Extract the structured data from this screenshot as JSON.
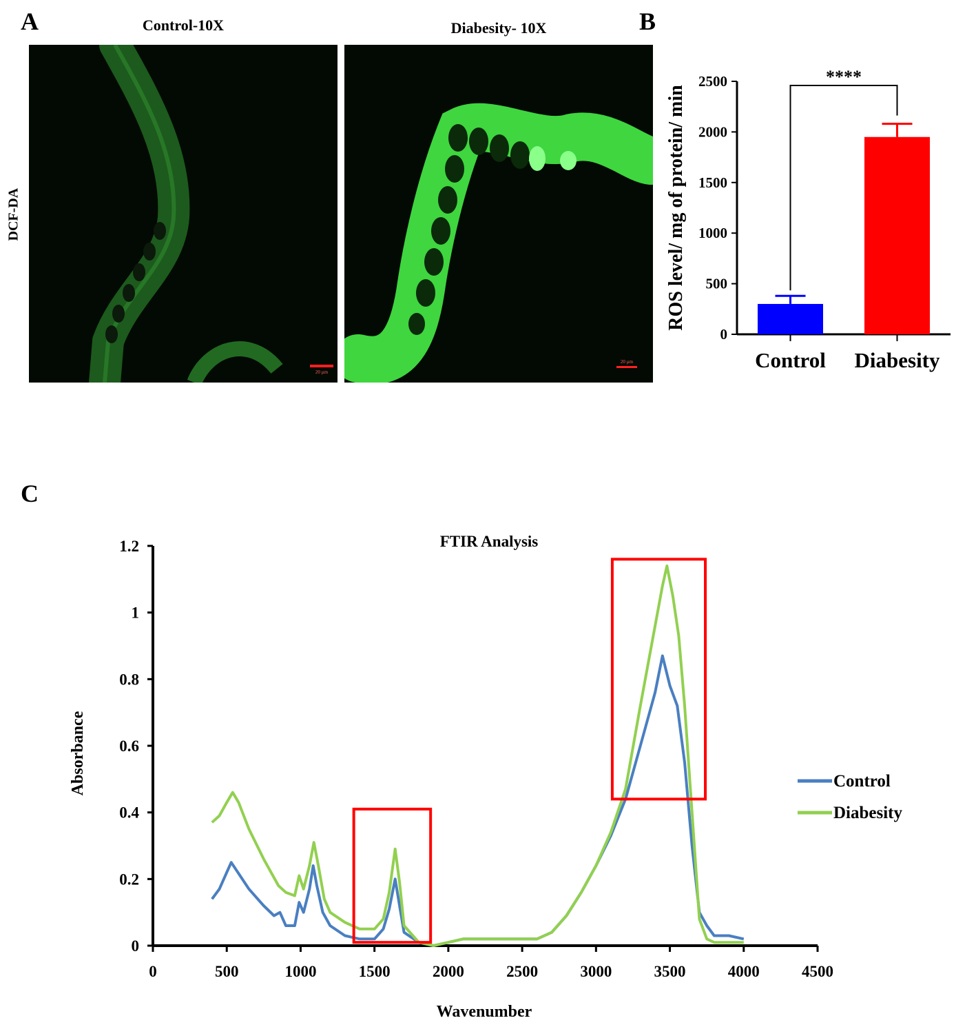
{
  "panel_a": {
    "letter": "A",
    "stain_label": "DCF-DA",
    "images": [
      {
        "title": "Control-10X",
        "scale_bar": "20 µm"
      },
      {
        "title": "Diabesity- 10X",
        "scale_bar": "20 µm"
      }
    ]
  },
  "panel_b": {
    "letter": "B"
  },
  "panel_c": {
    "letter": "C"
  },
  "chart_data": [
    {
      "type": "bar",
      "title": "",
      "xlabel": "",
      "ylabel": "ROS level/ mg of protein/ min",
      "categories": [
        "Control",
        "Diabesity"
      ],
      "values": [
        300,
        1950
      ],
      "errors": [
        80,
        130
      ],
      "colors": [
        "#0000ff",
        "#ff0000"
      ],
      "ylim": [
        0,
        2500
      ],
      "yticks": [
        0,
        500,
        1000,
        1500,
        2000,
        2500
      ],
      "significance": "****",
      "grid": false
    },
    {
      "type": "line",
      "title": "FTIR Analysis",
      "xlabel": "Wavenumber",
      "ylabel": "Absorbance",
      "xlim": [
        0,
        4500
      ],
      "ylim": [
        0,
        1.2
      ],
      "xticks": [
        0,
        500,
        1000,
        1500,
        2000,
        2500,
        3000,
        3500,
        4000,
        4500
      ],
      "yticks": [
        "0",
        "0.2",
        "0.4",
        "0.6",
        "0.8",
        "1",
        "1.2"
      ],
      "legend_position": "right",
      "grid": false,
      "series": [
        {
          "name": "Control",
          "color": "#4a7fc1",
          "x": [
            400,
            450,
            500,
            530,
            560,
            650,
            750,
            820,
            860,
            900,
            960,
            990,
            1020,
            1060,
            1085,
            1110,
            1150,
            1200,
            1300,
            1400,
            1500,
            1560,
            1600,
            1640,
            1670,
            1700,
            1800,
            1900,
            2000,
            2100,
            2300,
            2500,
            2600,
            2700,
            2800,
            2900,
            3000,
            3100,
            3200,
            3300,
            3400,
            3450,
            3500,
            3550,
            3600,
            3650,
            3700,
            3750,
            3800,
            3900,
            4000
          ],
          "y": [
            0.14,
            0.17,
            0.22,
            0.25,
            0.23,
            0.17,
            0.12,
            0.09,
            0.1,
            0.06,
            0.06,
            0.13,
            0.1,
            0.17,
            0.24,
            0.18,
            0.1,
            0.06,
            0.03,
            0.02,
            0.02,
            0.05,
            0.11,
            0.2,
            0.12,
            0.04,
            0.01,
            0.0,
            0.01,
            0.02,
            0.02,
            0.02,
            0.02,
            0.04,
            0.09,
            0.16,
            0.24,
            0.33,
            0.44,
            0.6,
            0.76,
            0.87,
            0.78,
            0.72,
            0.55,
            0.3,
            0.1,
            0.06,
            0.03,
            0.03,
            0.02
          ]
        },
        {
          "name": "Diabesity",
          "color": "#92d050",
          "x": [
            400,
            450,
            500,
            540,
            580,
            650,
            750,
            850,
            900,
            960,
            990,
            1020,
            1060,
            1090,
            1120,
            1160,
            1200,
            1300,
            1400,
            1500,
            1560,
            1600,
            1640,
            1670,
            1700,
            1800,
            1900,
            2000,
            2100,
            2300,
            2500,
            2600,
            2700,
            2800,
            2900,
            3000,
            3100,
            3200,
            3300,
            3400,
            3450,
            3480,
            3520,
            3560,
            3600,
            3650,
            3700,
            3750,
            3800,
            3900,
            4000
          ],
          "y": [
            0.37,
            0.39,
            0.43,
            0.46,
            0.43,
            0.35,
            0.26,
            0.18,
            0.16,
            0.15,
            0.21,
            0.17,
            0.24,
            0.31,
            0.24,
            0.14,
            0.1,
            0.07,
            0.05,
            0.05,
            0.08,
            0.16,
            0.29,
            0.19,
            0.06,
            0.01,
            0.0,
            0.01,
            0.02,
            0.02,
            0.02,
            0.02,
            0.04,
            0.09,
            0.16,
            0.24,
            0.34,
            0.47,
            0.72,
            0.96,
            1.08,
            1.14,
            1.05,
            0.93,
            0.72,
            0.4,
            0.08,
            0.02,
            0.01,
            0.01,
            0.01
          ]
        }
      ],
      "highlight_boxes": [
        {
          "x": [
            1360,
            1880
          ],
          "y": [
            0.01,
            0.41
          ],
          "color": "#ff0000"
        },
        {
          "x": [
            3110,
            3740
          ],
          "y": [
            0.44,
            1.16
          ],
          "color": "#ff0000"
        }
      ]
    }
  ]
}
